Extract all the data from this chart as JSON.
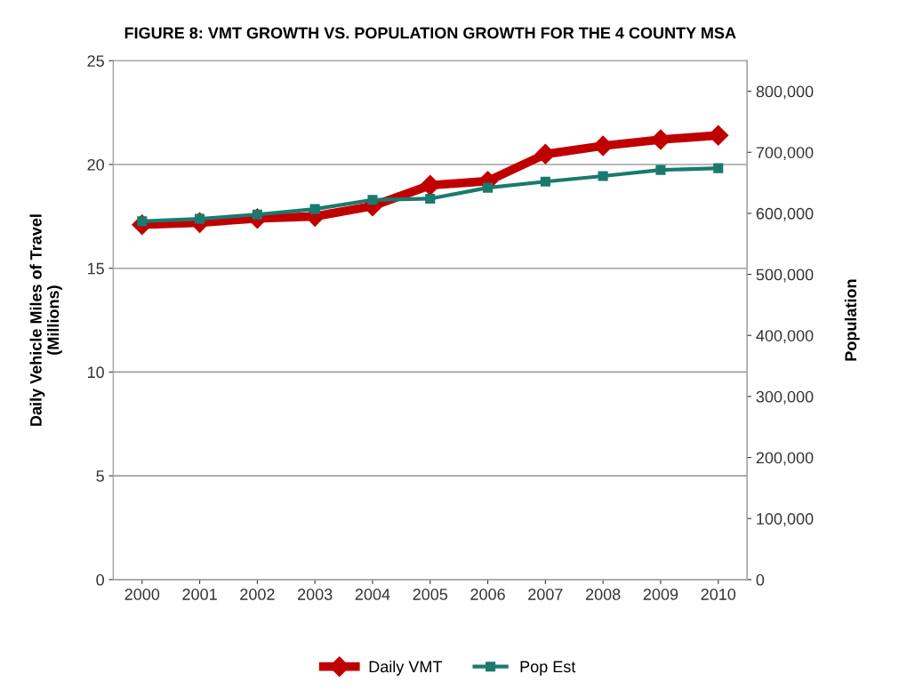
{
  "chart_data": {
    "type": "line",
    "title": "FIGURE 8: VMT GROWTH VS. POPULATION GROWTH FOR THE 4 COUNTY MSA",
    "ylabel": "Daily Vehicle Miles of Travel\n(Millions)",
    "y2label": "Population",
    "categories": [
      "2000",
      "2001",
      "2002",
      "2003",
      "2004",
      "2005",
      "2006",
      "2007",
      "2008",
      "2009",
      "2010"
    ],
    "series": [
      {
        "name": "Daily VMT",
        "color": "#c00000",
        "marker": "diamond",
        "values": [
          17.1,
          17.2,
          17.4,
          17.5,
          18.0,
          19.0,
          19.2,
          20.5,
          20.9,
          21.2,
          21.4
        ]
      },
      {
        "name": "Pop Est",
        "color": "#1a7a6e",
        "marker": "square",
        "axis": "y2",
        "values": [
          587000,
          591000,
          598000,
          607000,
          622000,
          624000,
          642000,
          652000,
          661000,
          671000,
          674000
        ]
      }
    ],
    "ylim": [
      0,
      25
    ],
    "yticks": [
      0,
      5,
      10,
      15,
      20,
      25
    ],
    "y2lim": [
      0,
      850000
    ],
    "y2ticks": [
      {
        "value": 0,
        "label": "0"
      },
      {
        "value": 100000,
        "label": "100,000"
      },
      {
        "value": 200000,
        "label": "200,000"
      },
      {
        "value": 300000,
        "label": "300,000"
      },
      {
        "value": 400000,
        "label": "400,000"
      },
      {
        "value": 500000,
        "label": "500,000"
      },
      {
        "value": 600000,
        "label": "600,000"
      },
      {
        "value": 700000,
        "label": "700,000"
      },
      {
        "value": 800000,
        "label": "800,000"
      }
    ],
    "grid": "y",
    "legend": "bottom",
    "line_style": "solid"
  }
}
